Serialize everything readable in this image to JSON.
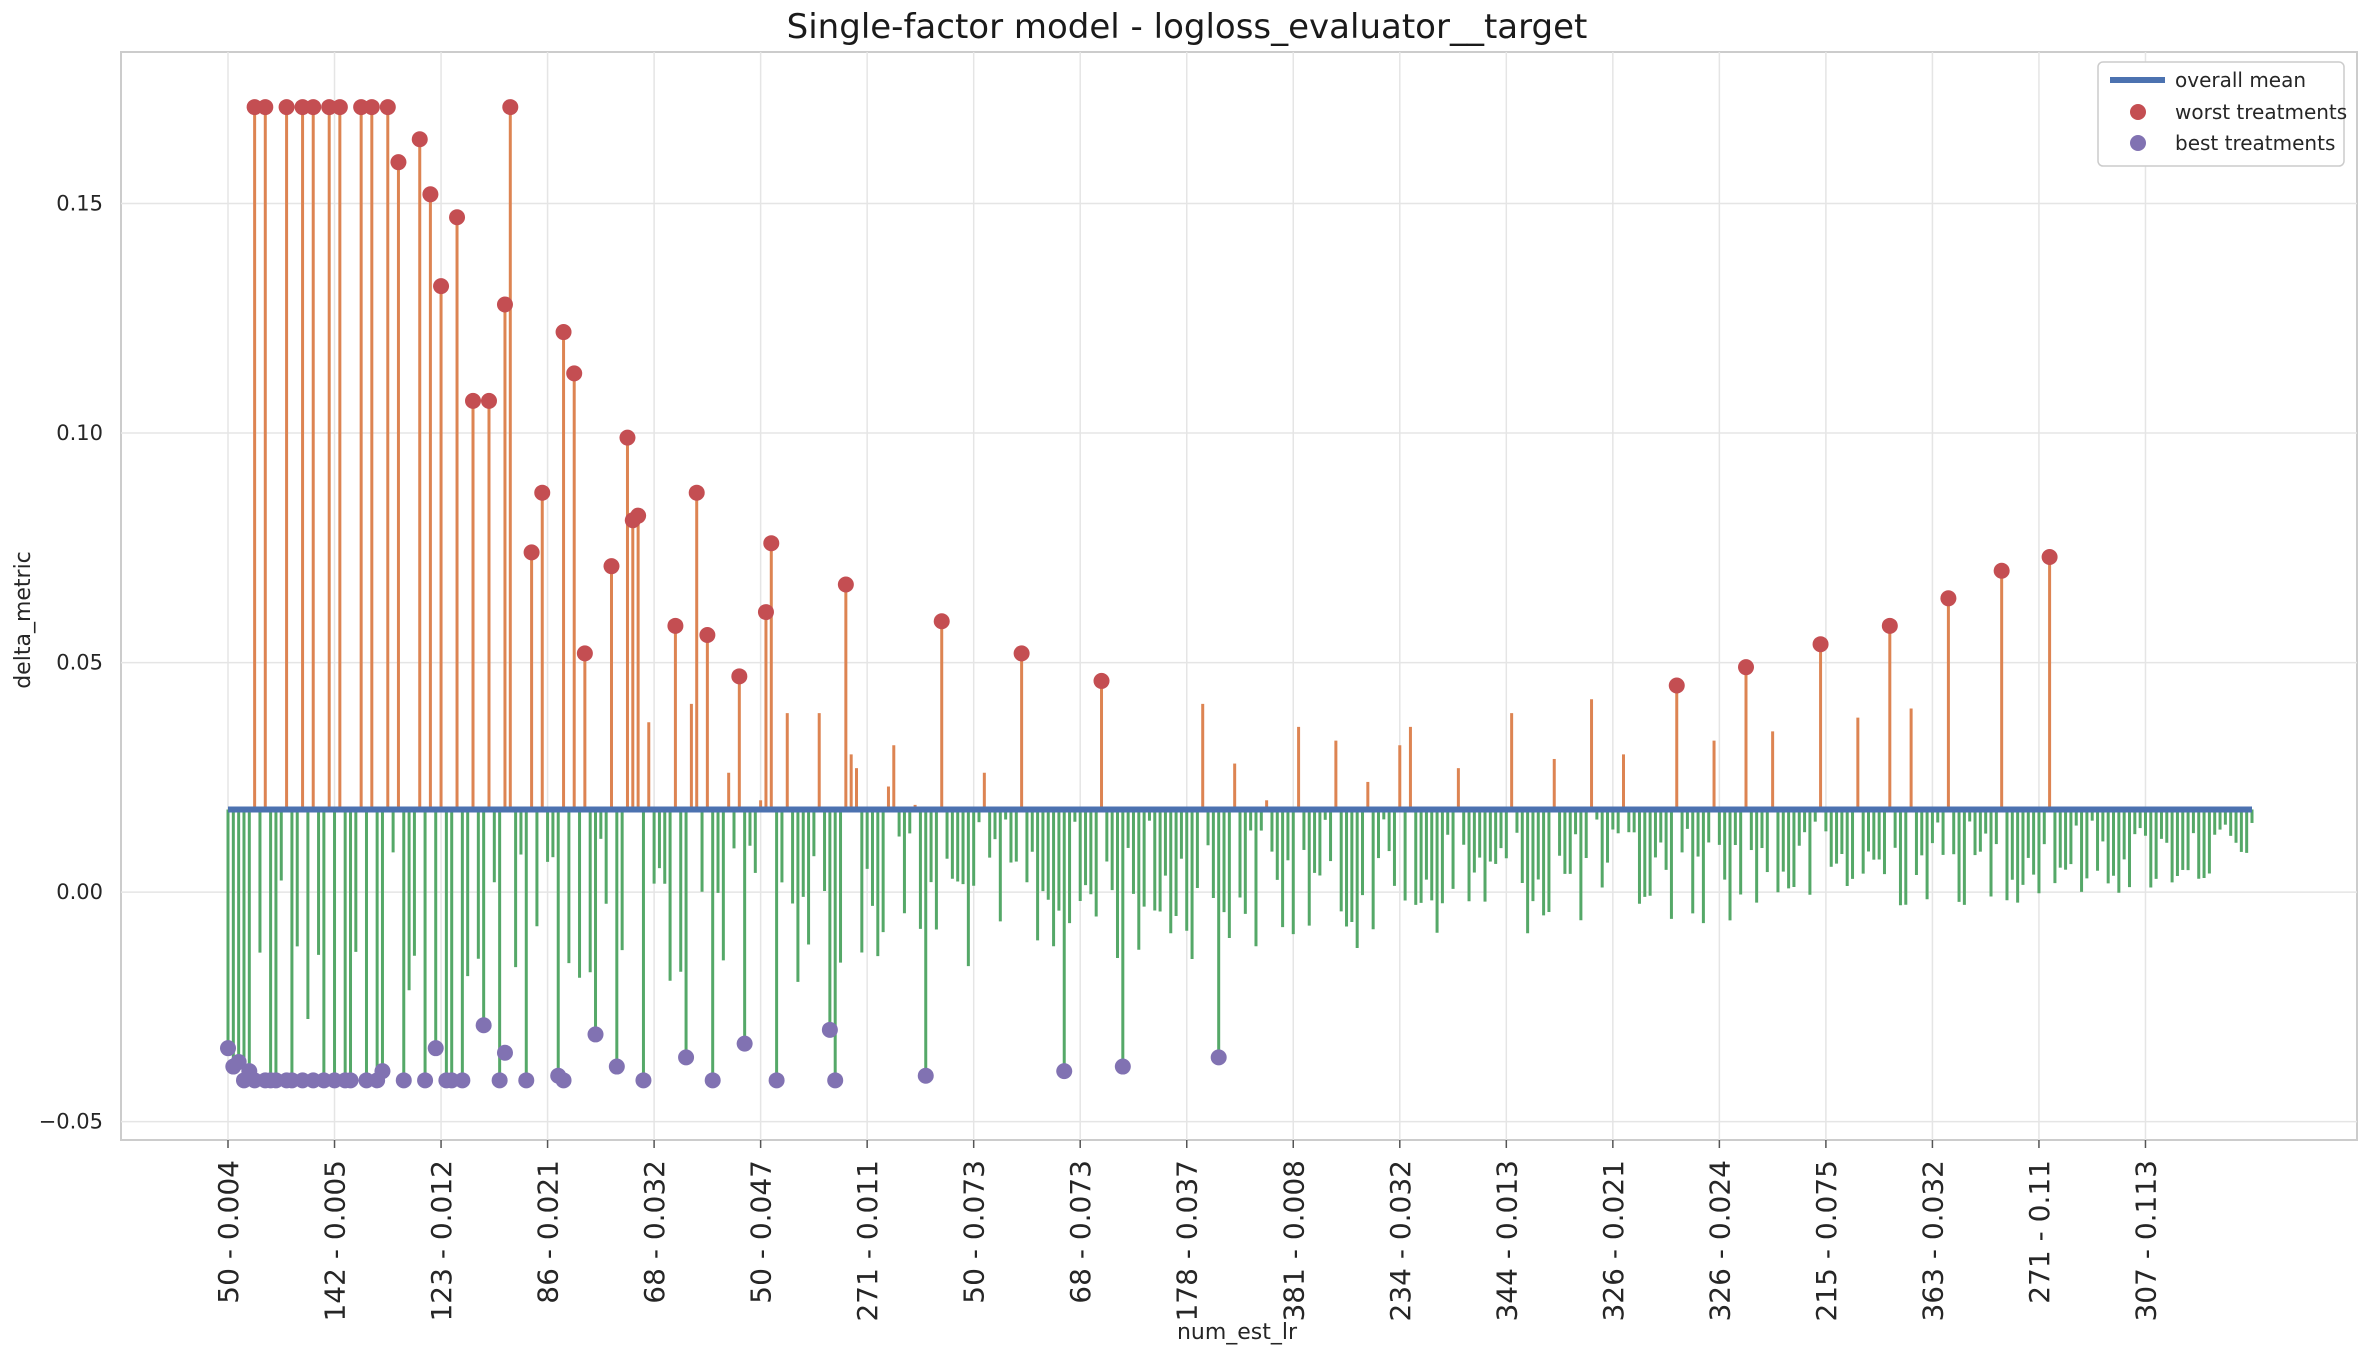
{
  "chart_data": {
    "type": "lollipop",
    "title": "Single-factor model - logloss_evaluator__target",
    "xlabel": "num_est_lr",
    "ylabel": "delta_metric",
    "ylim": [
      -0.054,
      0.183
    ],
    "yticks": [
      -0.05,
      0.0,
      0.05,
      0.1,
      0.15
    ],
    "ytick_labels": [
      "−0.05",
      "0.00",
      "0.05",
      "0.10",
      "0.15"
    ],
    "xtick_labels": [
      "50 - 0.004",
      "142 - 0.005",
      "123 - 0.012",
      "86 - 0.021",
      "68 - 0.032",
      "50 - 0.047",
      "271 - 0.011",
      "50 - 0.073",
      "68 - 0.073",
      "178 - 0.037",
      "381 - 0.008",
      "234 - 0.032",
      "344 - 0.013",
      "326 - 0.021",
      "326 - 0.024",
      "215 - 0.075",
      "363 - 0.032",
      "271 - 0.11",
      "307 - 0.113"
    ],
    "xtick_step": 20,
    "n_treatments": 381,
    "overall_mean": 0.018,
    "grid": true,
    "legend_position": "top-right",
    "legend": [
      {
        "label": "overall mean",
        "kind": "line",
        "color": "#4c72b0"
      },
      {
        "label": "worst treatments",
        "kind": "marker",
        "color": "#c44e52"
      },
      {
        "label": "best treatments",
        "kind": "marker",
        "color": "#8172b2"
      }
    ],
    "colors": {
      "above_mean": "#dd8452",
      "below_mean": "#55a868",
      "mean_line": "#4c72b0",
      "worst": "#c44e52",
      "best": "#8172b2"
    },
    "worst_treatments": [
      {
        "x": 5,
        "y": 0.171
      },
      {
        "x": 7,
        "y": 0.171
      },
      {
        "x": 11,
        "y": 0.171
      },
      {
        "x": 14,
        "y": 0.171
      },
      {
        "x": 16,
        "y": 0.171
      },
      {
        "x": 19,
        "y": 0.171
      },
      {
        "x": 21,
        "y": 0.171
      },
      {
        "x": 25,
        "y": 0.171
      },
      {
        "x": 27,
        "y": 0.171
      },
      {
        "x": 30,
        "y": 0.171
      },
      {
        "x": 32,
        "y": 0.159
      },
      {
        "x": 36,
        "y": 0.164
      },
      {
        "x": 38,
        "y": 0.152
      },
      {
        "x": 40,
        "y": 0.132
      },
      {
        "x": 43,
        "y": 0.147
      },
      {
        "x": 46,
        "y": 0.107
      },
      {
        "x": 49,
        "y": 0.107
      },
      {
        "x": 52,
        "y": 0.128
      },
      {
        "x": 53,
        "y": 0.171
      },
      {
        "x": 57,
        "y": 0.074
      },
      {
        "x": 59,
        "y": 0.087
      },
      {
        "x": 63,
        "y": 0.122
      },
      {
        "x": 65,
        "y": 0.113
      },
      {
        "x": 67,
        "y": 0.052
      },
      {
        "x": 72,
        "y": 0.071
      },
      {
        "x": 75,
        "y": 0.099
      },
      {
        "x": 76,
        "y": 0.081
      },
      {
        "x": 77,
        "y": 0.082
      },
      {
        "x": 84,
        "y": 0.058
      },
      {
        "x": 88,
        "y": 0.087
      },
      {
        "x": 90,
        "y": 0.056
      },
      {
        "x": 96,
        "y": 0.047
      },
      {
        "x": 101,
        "y": 0.061
      },
      {
        "x": 102,
        "y": 0.076
      },
      {
        "x": 116,
        "y": 0.067
      },
      {
        "x": 134,
        "y": 0.059
      },
      {
        "x": 149,
        "y": 0.052
      },
      {
        "x": 164,
        "y": 0.046
      },
      {
        "x": 272,
        "y": 0.045
      },
      {
        "x": 285,
        "y": 0.049
      },
      {
        "x": 299,
        "y": 0.054
      },
      {
        "x": 312,
        "y": 0.058
      },
      {
        "x": 323,
        "y": 0.064
      },
      {
        "x": 333,
        "y": 0.07
      },
      {
        "x": 342,
        "y": 0.073
      }
    ],
    "best_treatments": [
      {
        "x": 0,
        "y": -0.034
      },
      {
        "x": 1,
        "y": -0.038
      },
      {
        "x": 2,
        "y": -0.037
      },
      {
        "x": 3,
        "y": -0.041
      },
      {
        "x": 4,
        "y": -0.039
      },
      {
        "x": 5,
        "y": -0.041
      },
      {
        "x": 7,
        "y": -0.041
      },
      {
        "x": 8,
        "y": -0.041
      },
      {
        "x": 9,
        "y": -0.041
      },
      {
        "x": 11,
        "y": -0.041
      },
      {
        "x": 12,
        "y": -0.041
      },
      {
        "x": 14,
        "y": -0.041
      },
      {
        "x": 16,
        "y": -0.041
      },
      {
        "x": 18,
        "y": -0.041
      },
      {
        "x": 20,
        "y": -0.041
      },
      {
        "x": 22,
        "y": -0.041
      },
      {
        "x": 23,
        "y": -0.041
      },
      {
        "x": 26,
        "y": -0.041
      },
      {
        "x": 28,
        "y": -0.041
      },
      {
        "x": 29,
        "y": -0.039
      },
      {
        "x": 33,
        "y": -0.041
      },
      {
        "x": 37,
        "y": -0.041
      },
      {
        "x": 39,
        "y": -0.034
      },
      {
        "x": 41,
        "y": -0.041
      },
      {
        "x": 42,
        "y": -0.041
      },
      {
        "x": 44,
        "y": -0.041
      },
      {
        "x": 48,
        "y": -0.029
      },
      {
        "x": 51,
        "y": -0.041
      },
      {
        "x": 52,
        "y": -0.035
      },
      {
        "x": 56,
        "y": -0.041
      },
      {
        "x": 62,
        "y": -0.04
      },
      {
        "x": 63,
        "y": -0.041
      },
      {
        "x": 69,
        "y": -0.031
      },
      {
        "x": 73,
        "y": -0.038
      },
      {
        "x": 78,
        "y": -0.041
      },
      {
        "x": 86,
        "y": -0.036
      },
      {
        "x": 91,
        "y": -0.041
      },
      {
        "x": 97,
        "y": -0.033
      },
      {
        "x": 103,
        "y": -0.041
      },
      {
        "x": 113,
        "y": -0.03
      },
      {
        "x": 114,
        "y": -0.041
      },
      {
        "x": 131,
        "y": -0.04
      },
      {
        "x": 157,
        "y": -0.039
      },
      {
        "x": 168,
        "y": -0.038
      },
      {
        "x": 186,
        "y": -0.036
      }
    ],
    "other_treatments": [
      {
        "x": 87,
        "y": 0.041
      },
      {
        "x": 94,
        "y": 0.026
      },
      {
        "x": 100,
        "y": 0.02
      },
      {
        "x": 105,
        "y": 0.039
      },
      {
        "x": 111,
        "y": 0.039
      },
      {
        "x": 117,
        "y": 0.03
      },
      {
        "x": 118,
        "y": 0.027
      },
      {
        "x": 124,
        "y": 0.023
      },
      {
        "x": 125,
        "y": 0.032
      },
      {
        "x": 129,
        "y": 0.019
      },
      {
        "x": 142,
        "y": 0.026
      },
      {
        "x": 157,
        "y": 0.022
      },
      {
        "x": 168,
        "y": 0.024
      },
      {
        "x": 79,
        "y": 0.037
      },
      {
        "x": 183,
        "y": 0.041
      },
      {
        "x": 189,
        "y": 0.028
      },
      {
        "x": 195,
        "y": 0.02
      },
      {
        "x": 201,
        "y": 0.036
      },
      {
        "x": 208,
        "y": 0.033
      },
      {
        "x": 214,
        "y": 0.024
      },
      {
        "x": 220,
        "y": 0.032
      },
      {
        "x": 222,
        "y": 0.036
      },
      {
        "x": 231,
        "y": 0.027
      },
      {
        "x": 241,
        "y": 0.039
      },
      {
        "x": 249,
        "y": 0.029
      },
      {
        "x": 256,
        "y": 0.042
      },
      {
        "x": 262,
        "y": 0.03
      },
      {
        "x": 279,
        "y": 0.033
      },
      {
        "x": 290,
        "y": 0.035
      },
      {
        "x": 306,
        "y": 0.038
      },
      {
        "x": 316,
        "y": 0.04
      }
    ],
    "below_mean_fallback": {
      "seed": 12345,
      "note": "bars below the mean for remaining treatments"
    }
  }
}
